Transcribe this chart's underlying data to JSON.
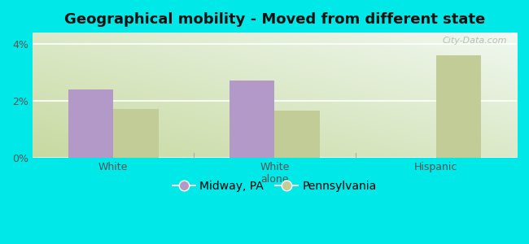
{
  "title": "Geographical mobility - Moved from different state",
  "categories": [
    "White",
    "White\nalone",
    "Hispanic"
  ],
  "midway_values": [
    2.4,
    2.72,
    0.0
  ],
  "pennsylvania_values": [
    1.72,
    1.65,
    3.6
  ],
  "midway_color": "#b399c8",
  "pennsylvania_color": "#c2cc96",
  "background_outer": "#00e8e8",
  "bg_top_left": "#c8d9a0",
  "bg_bottom_right": "#f0f8f0",
  "ylim": [
    0,
    4.4
  ],
  "yticks": [
    0,
    2,
    4
  ],
  "ytick_labels": [
    "0%",
    "2%",
    "4%"
  ],
  "bar_width": 0.28,
  "legend_labels": [
    "Midway, PA",
    "Pennsylvania"
  ],
  "watermark": "City-Data.com",
  "title_fontsize": 13,
  "tick_fontsize": 9
}
